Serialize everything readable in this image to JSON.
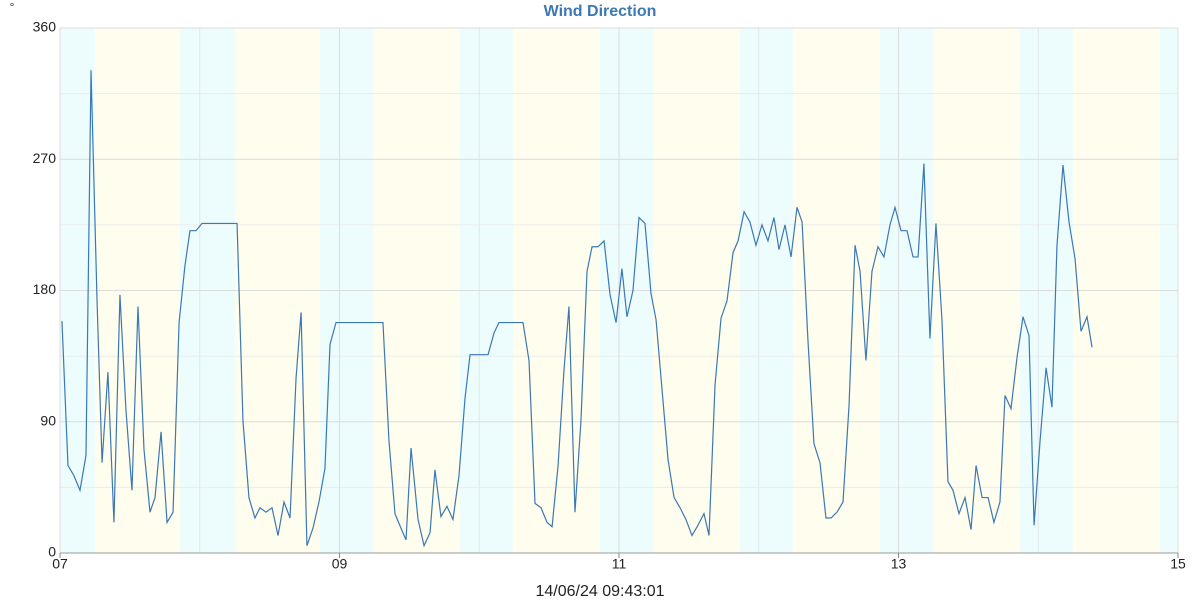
{
  "chart_data": {
    "type": "line",
    "title": "Wind Direction",
    "y_unit": "°",
    "timestamp": "14/06/24 09:43:01",
    "xlim": [
      7,
      15
    ],
    "xticks": [
      {
        "value": 7,
        "label": "07"
      },
      {
        "value": 9,
        "label": "09"
      },
      {
        "value": 11,
        "label": "11"
      },
      {
        "value": 13,
        "label": "13"
      },
      {
        "value": 15,
        "label": "15"
      }
    ],
    "xminor": [
      8,
      10,
      12,
      14
    ],
    "ylim": [
      0,
      360
    ],
    "yticks": [
      0,
      90,
      180,
      270,
      360
    ],
    "yminor": [
      45,
      135,
      225,
      315
    ],
    "grid": true,
    "night_color": "#edfdfd",
    "day_color": "#fefdee",
    "night_bands": [
      [
        7,
        7.25
      ],
      [
        7.859,
        8.252
      ],
      [
        8.861,
        9.24
      ],
      [
        9.862,
        10.242
      ],
      [
        10.864,
        11.243
      ],
      [
        11.866,
        12.245
      ],
      [
        12.868,
        13.247
      ],
      [
        13.869,
        14.249
      ],
      [
        14.871,
        15
      ]
    ],
    "day_bands": [
      [
        7.25,
        7.859
      ],
      [
        8.252,
        8.861
      ],
      [
        9.24,
        9.862
      ],
      [
        10.242,
        10.864
      ],
      [
        11.243,
        11.866
      ],
      [
        12.245,
        12.868
      ],
      [
        13.247,
        13.869
      ],
      [
        14.249,
        14.871
      ]
    ],
    "x": [
      7.014,
      7.057,
      7.1,
      7.143,
      7.186,
      7.222,
      7.265,
      7.301,
      7.343,
      7.386,
      7.429,
      7.472,
      7.515,
      7.558,
      7.601,
      7.644,
      7.68,
      7.723,
      7.766,
      7.809,
      7.852,
      7.894,
      7.93,
      7.973,
      8.016,
      8.267,
      8.309,
      8.352,
      8.395,
      8.431,
      8.474,
      8.517,
      8.56,
      8.603,
      8.646,
      8.689,
      8.725,
      8.767,
      8.81,
      8.853,
      8.896,
      8.932,
      8.975,
      9.311,
      9.354,
      9.397,
      9.44,
      9.476,
      9.512,
      9.562,
      9.605,
      9.648,
      9.683,
      9.726,
      9.769,
      9.812,
      9.855,
      9.898,
      9.934,
      10.063,
      10.106,
      10.141,
      10.313,
      10.356,
      10.399,
      10.442,
      10.485,
      10.521,
      10.564,
      10.606,
      10.642,
      10.685,
      10.728,
      10.771,
      10.807,
      10.85,
      10.893,
      10.936,
      10.979,
      11.021,
      11.057,
      11.1,
      11.143,
      11.186,
      11.229,
      11.265,
      11.308,
      11.351,
      11.394,
      11.437,
      11.479,
      11.522,
      11.565,
      11.608,
      11.644,
      11.687,
      11.73,
      11.773,
      11.816,
      11.852,
      11.895,
      11.937,
      11.98,
      12.023,
      12.066,
      12.109,
      12.145,
      12.188,
      12.231,
      12.274,
      12.31,
      12.352,
      12.395,
      12.438,
      12.481,
      12.517,
      12.56,
      12.603,
      12.646,
      12.689,
      12.725,
      12.767,
      12.81,
      12.853,
      12.896,
      12.939,
      12.975,
      13.018,
      13.061,
      13.104,
      13.14,
      13.182,
      13.225,
      13.268,
      13.311,
      13.354,
      13.39,
      13.433,
      13.476,
      13.519,
      13.555,
      13.598,
      13.641,
      13.683,
      13.726,
      13.762,
      13.805,
      13.848,
      13.891,
      13.934,
      13.97,
      14.013,
      14.056,
      14.098,
      14.134,
      14.177,
      14.22,
      14.263,
      14.306,
      14.349,
      14.385
    ],
    "series": [
      {
        "name": "Wind Direction",
        "color": "#3b78b4",
        "values": [
          159,
          60,
          53,
          43,
          67,
          331,
          173,
          62,
          124,
          21,
          177,
          98,
          43,
          169,
          71,
          28,
          38,
          83,
          21,
          28,
          158,
          197,
          221,
          221,
          226,
          226,
          91,
          38,
          24,
          31,
          28,
          31,
          12,
          35,
          24,
          120,
          165,
          5,
          17,
          35,
          58,
          143,
          158,
          158,
          77,
          27,
          17,
          9,
          72,
          23,
          5,
          14,
          57,
          25,
          32,
          23,
          53,
          106,
          136,
          136,
          151,
          158,
          158,
          132,
          34,
          31,
          21,
          18,
          60,
          125,
          169,
          28,
          91,
          193,
          210,
          210,
          214,
          177,
          158,
          195,
          162,
          180,
          230,
          226,
          178,
          160,
          112,
          64,
          38,
          31,
          23,
          12,
          19,
          27,
          12,
          115,
          161,
          173,
          206,
          214,
          234,
          227,
          211,
          225,
          214,
          230,
          208,
          225,
          203,
          237,
          227,
          146,
          75,
          62,
          24,
          24,
          28,
          35,
          101,
          211,
          193,
          132,
          193,
          210,
          203,
          225,
          237,
          221,
          221,
          203,
          203,
          267,
          147,
          226,
          160,
          49,
          43,
          27,
          38,
          16,
          60,
          38,
          38,
          21,
          35,
          108,
          99,
          134,
          162,
          149,
          19,
          77,
          127,
          100,
          211,
          266,
          227,
          202,
          152,
          162,
          141
        ]
      }
    ]
  }
}
